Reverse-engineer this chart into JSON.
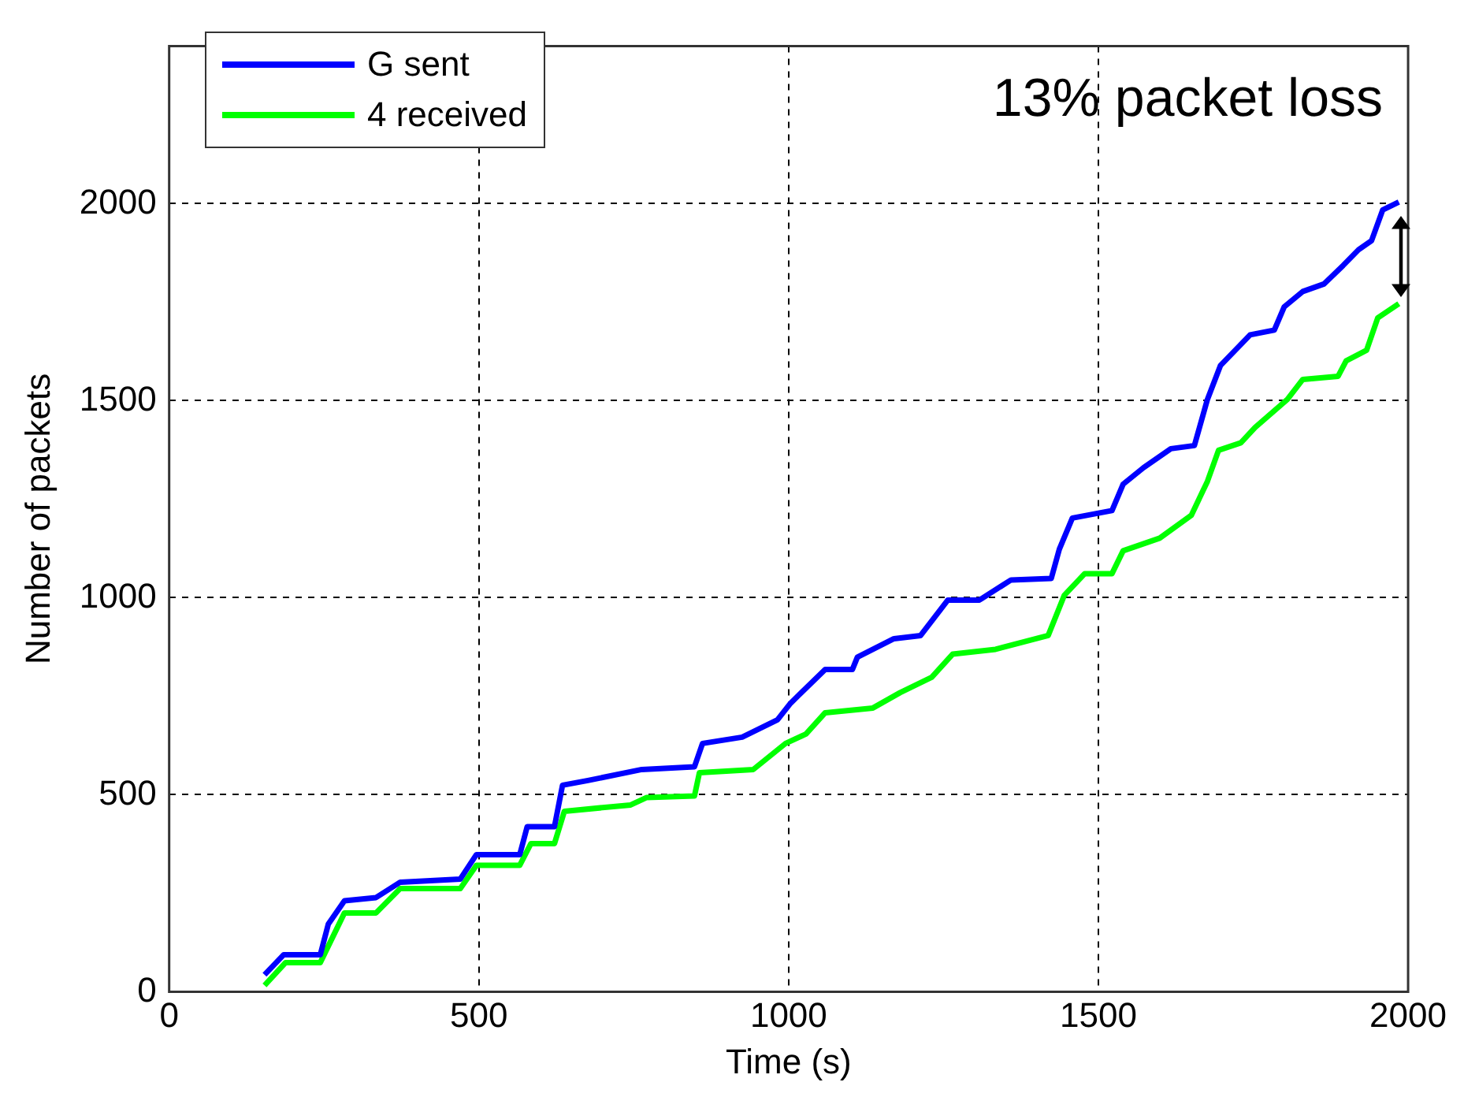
{
  "chart_data": {
    "type": "line",
    "xlabel": "Time (s)",
    "ylabel": "Number of packets",
    "xlim": [
      0,
      2000
    ],
    "xticks": [
      0,
      500,
      1000,
      1500,
      2000
    ],
    "ylim": [
      0,
      2400
    ],
    "yticks": [
      0,
      500,
      1000,
      1500,
      2000
    ],
    "grid": true,
    "legend": "top left",
    "marker": "none",
    "annotations": [
      "13% packet loss"
    ],
    "series": [
      {
        "name": "G sent",
        "color": "#0000ff",
        "x": [
          154,
          185,
          244,
          257,
          283,
          334,
          373,
          470,
          496,
          566,
          578,
          622,
          635,
          676,
          763,
          848,
          861,
          925,
          982,
          1003,
          1059,
          1103,
          1111,
          1170,
          1213,
          1257,
          1308,
          1359,
          1424,
          1437,
          1458,
          1522,
          1540,
          1573,
          1617,
          1655,
          1676,
          1697,
          1745,
          1784,
          1800,
          1830,
          1864,
          1895,
          1920,
          1941,
          1959,
          1985
        ],
        "values": [
          43,
          94,
          94,
          172,
          231,
          239,
          278,
          286,
          348,
          348,
          419,
          419,
          524,
          536,
          564,
          571,
          630,
          646,
          690,
          732,
          818,
          818,
          849,
          896,
          904,
          994,
          994,
          1045,
          1049,
          1123,
          1202,
          1221,
          1288,
          1330,
          1378,
          1386,
          1503,
          1589,
          1667,
          1679,
          1738,
          1777,
          1796,
          1843,
          1883,
          1906,
          1984,
          2004
        ]
      },
      {
        "name": "4 received",
        "color": "#00ff00",
        "x": [
          154,
          188,
          244,
          283,
          334,
          373,
          470,
          496,
          566,
          584,
          622,
          638,
          745,
          771,
          848,
          856,
          943,
          995,
          1028,
          1059,
          1136,
          1180,
          1231,
          1265,
          1334,
          1419,
          1445,
          1478,
          1522,
          1540,
          1599,
          1650,
          1676,
          1694,
          1730,
          1753,
          1805,
          1830,
          1887,
          1900,
          1933,
          1951,
          1985
        ],
        "values": [
          16,
          74,
          74,
          200,
          200,
          262,
          262,
          321,
          321,
          376,
          376,
          458,
          474,
          493,
          497,
          556,
          564,
          630,
          654,
          708,
          720,
          759,
          798,
          857,
          869,
          904,
          1006,
          1061,
          1061,
          1119,
          1151,
          1209,
          1295,
          1374,
          1393,
          1432,
          1503,
          1554,
          1562,
          1601,
          1628,
          1710,
          1746
        ]
      }
    ]
  }
}
